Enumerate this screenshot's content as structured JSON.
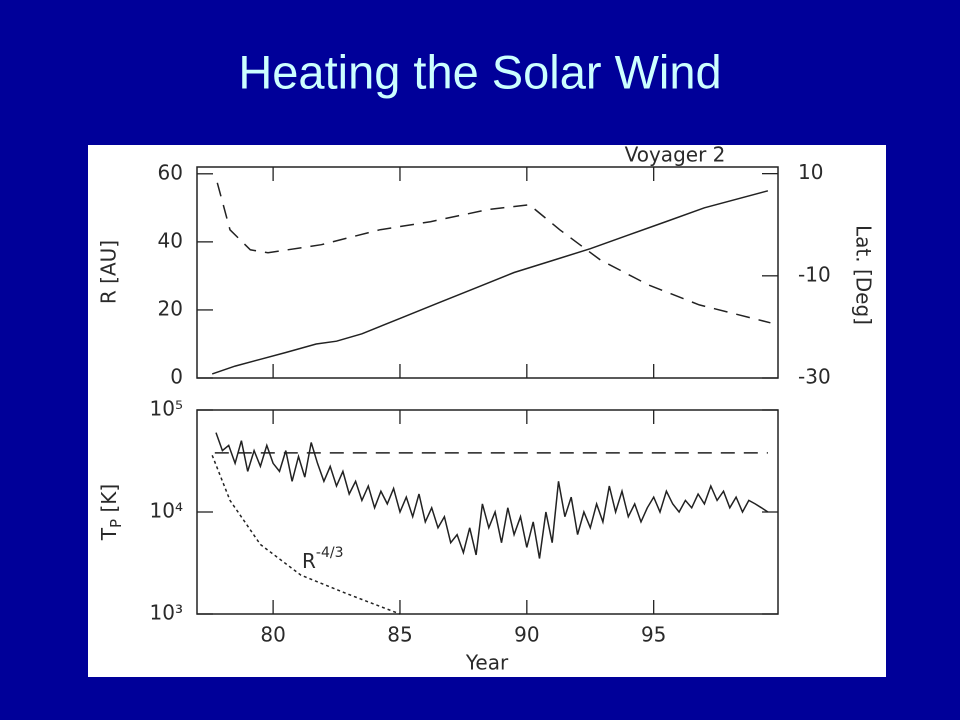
{
  "slide": {
    "title": "Heating the Solar Wind"
  },
  "chart_data": [
    {
      "type": "line",
      "title": "Voyager 2",
      "y_label": "R [AU]",
      "y2_label": "Lat. [Deg]",
      "xlim": [
        77,
        99.9
      ],
      "xticks": [
        80,
        85,
        90,
        95
      ],
      "show_xtick_labels": false,
      "ylim": [
        0,
        62
      ],
      "yticks": [
        0,
        20,
        40,
        60
      ],
      "y2lim": [
        -30,
        11.3
      ],
      "y2ticks": [
        -30,
        -10,
        10
      ],
      "series": [
        {
          "dash": "solid",
          "color": "#222222",
          "x": [
            77.6,
            78.5,
            79.5,
            80.5,
            81.7,
            82.5,
            83.5,
            85,
            86.5,
            88,
            89.5,
            91,
            92.5,
            94,
            95.5,
            97,
            99.5
          ],
          "values": [
            1.2,
            3.5,
            5.5,
            7.5,
            10,
            10.8,
            13,
            17.5,
            22,
            26.5,
            31,
            34.5,
            38,
            42,
            46,
            50,
            55
          ]
        },
        {
          "dash": "dashed",
          "color": "#222222",
          "axis": "y2",
          "x": [
            77.8,
            78.3,
            79.1,
            79.8,
            81.9,
            84.2,
            86.2,
            88.5,
            90.1,
            91.3,
            92.9,
            94.8,
            96.8,
            99.6
          ],
          "values": [
            8.2,
            -1,
            -4.9,
            -5.5,
            -3.9,
            -1,
            0.6,
            3,
            3.9,
            -1,
            -6.9,
            -11.8,
            -15.7,
            -19.2
          ]
        }
      ]
    },
    {
      "type": "line",
      "log_y": true,
      "y_label": {
        "main": "T",
        "sub": "P",
        "rest": " [K]"
      },
      "x_label": "Year",
      "xlim": [
        77,
        99.9
      ],
      "xticks": [
        80,
        85,
        90,
        95
      ],
      "show_xtick_labels": true,
      "ylim": [
        1000,
        100000
      ],
      "yticks": [
        {
          "value": 1000,
          "label": "10³"
        },
        {
          "value": 10000,
          "label": "10⁴"
        },
        {
          "value": 100000,
          "label": "10⁵"
        }
      ],
      "annotation": {
        "base": "R",
        "sup": "-4/3"
      },
      "series": [
        {
          "dash": "solid",
          "color": "#222222",
          "x": [
            77.75,
            78,
            78.25,
            78.5,
            78.75,
            79,
            79.25,
            79.5,
            79.75,
            80,
            80.25,
            80.5,
            80.75,
            81,
            81.25,
            81.5,
            81.75,
            82,
            82.25,
            82.5,
            82.75,
            83,
            83.25,
            83.5,
            83.75,
            84,
            84.25,
            84.5,
            84.75,
            85,
            85.25,
            85.5,
            85.75,
            86,
            86.25,
            86.5,
            86.75,
            87,
            87.25,
            87.5,
            87.75,
            88,
            88.25,
            88.5,
            88.75,
            89,
            89.25,
            89.5,
            89.75,
            90,
            90.25,
            90.5,
            90.75,
            91,
            91.25,
            91.5,
            91.75,
            92,
            92.25,
            92.5,
            92.75,
            93,
            93.25,
            93.5,
            93.75,
            94,
            94.25,
            94.5,
            94.75,
            95,
            95.25,
            95.5,
            95.75,
            96,
            96.25,
            96.5,
            96.75,
            97,
            97.25,
            97.5,
            97.75,
            98,
            98.25,
            98.5,
            98.75,
            99,
            99.25,
            99.5
          ],
          "values": [
            60000,
            40000,
            45000,
            30000,
            50000,
            25000,
            40000,
            28000,
            45000,
            30000,
            25000,
            40000,
            20000,
            35000,
            22000,
            48000,
            30000,
            20000,
            28000,
            18000,
            25000,
            15000,
            20000,
            13000,
            18000,
            11000,
            16000,
            12000,
            17000,
            10000,
            14000,
            9000,
            15000,
            8000,
            11000,
            7000,
            9000,
            5000,
            6000,
            4000,
            7000,
            3800,
            12000,
            7000,
            10000,
            5000,
            11000,
            6000,
            9000,
            4500,
            8000,
            3500,
            10000,
            5000,
            20000,
            9000,
            14000,
            6000,
            10000,
            7000,
            12000,
            8000,
            18000,
            10000,
            16000,
            9000,
            12000,
            8000,
            11000,
            14000,
            10000,
            16000,
            12000,
            10000,
            13000,
            11000,
            15000,
            12000,
            18000,
            13000,
            16000,
            11000,
            14000,
            10000,
            13000,
            12000,
            11000,
            10000
          ]
        },
        {
          "dash": "dashed",
          "color": "#222222",
          "x": [
            77.7,
            99.5
          ],
          "values": [
            38000,
            38000
          ]
        },
        {
          "dash": "dotted",
          "color": "#222222",
          "x": [
            77.6,
            78.3,
            79.5,
            81.1,
            83,
            85
          ],
          "values": [
            36000,
            13000,
            4800,
            2400,
            1550,
            1000
          ]
        }
      ]
    }
  ]
}
